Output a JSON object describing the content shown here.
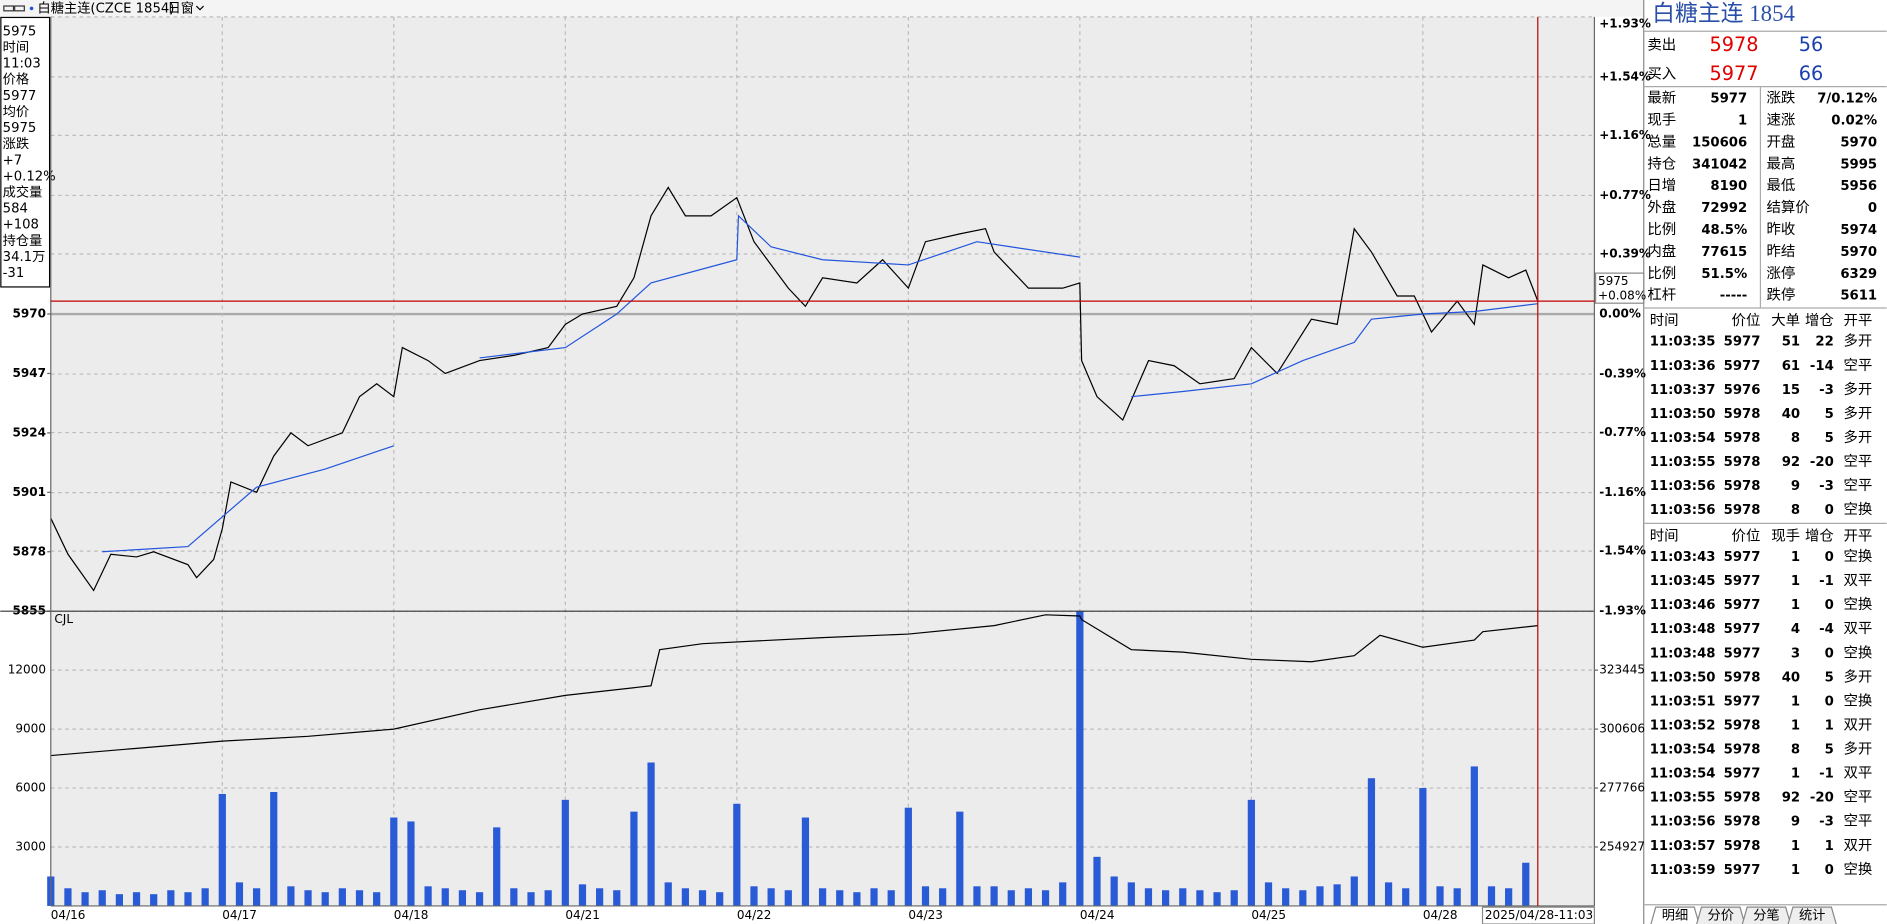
{
  "toolbar": {
    "symbol": "白糖主连(CZCE 1854)",
    "window": "日窗"
  },
  "info_box": [
    {
      "text": "5975",
      "color": "#000"
    },
    {
      "text": "时间",
      "color": "#000"
    },
    {
      "text": "11:03",
      "color": "#000"
    },
    {
      "text": "价格",
      "color": "#000"
    },
    {
      "text": "5977",
      "color": "#000"
    },
    {
      "text": "均价",
      "color": "#000"
    },
    {
      "text": "5975",
      "color": "#000"
    },
    {
      "text": "涨跌",
      "color": "#000"
    },
    {
      "text": "+7",
      "color": "#000"
    },
    {
      "text": "+0.12%",
      "color": "#000"
    },
    {
      "text": "成交量",
      "color": "#000"
    },
    {
      "text": "584",
      "color": "#000"
    },
    {
      "text": "+108",
      "color": "#e00000"
    },
    {
      "text": "持仓量",
      "color": "#000"
    },
    {
      "text": "34.1万",
      "color": "#000"
    },
    {
      "text": "-31",
      "color": "#008000"
    }
  ],
  "chart_data": [
    {
      "type": "line",
      "xlim": [
        0,
        9
      ],
      "xticks": [
        {
          "value": 0,
          "label": "04/16"
        },
        {
          "value": 1,
          "label": "04/17"
        },
        {
          "value": 2,
          "label": "04/18"
        },
        {
          "value": 3,
          "label": "04/21"
        },
        {
          "value": 4,
          "label": "04/22"
        },
        {
          "value": 5,
          "label": "04/23"
        },
        {
          "value": 6,
          "label": "04/24"
        },
        {
          "value": 7,
          "label": "04/25"
        },
        {
          "value": 8,
          "label": "04/28"
        }
      ],
      "ylim": [
        5855,
        6085
      ],
      "yticks": [
        5855,
        5878,
        5901,
        5924,
        5947,
        5970
      ],
      "y2lim": [
        -1.93,
        1.93
      ],
      "y2ticks": [
        {
          "value": 1.93,
          "label": "+1.93%"
        },
        {
          "value": 1.54,
          "label": "+1.54%"
        },
        {
          "value": 1.16,
          "label": "+1.16%"
        },
        {
          "value": 0.77,
          "label": "+0.77%"
        },
        {
          "value": 0.39,
          "label": "+0.39%"
        },
        {
          "value": 0,
          "label": "0.00%"
        },
        {
          "value": -0.39,
          "label": "-0.39%"
        },
        {
          "value": -0.77,
          "label": "-0.77%"
        },
        {
          "value": -1.16,
          "label": "-1.16%"
        },
        {
          "value": -1.54,
          "label": "-1.54%"
        },
        {
          "value": -1.93,
          "label": "-1.93%"
        }
      ],
      "grid": true,
      "series": [
        {
          "color": "#000000",
          "x": [
            0,
            0.1,
            0.25,
            0.35,
            0.5,
            0.6,
            0.8,
            0.85,
            0.95,
            1.0,
            1.05,
            1.2,
            1.3,
            1.4,
            1.5,
            1.7,
            1.8,
            1.9,
            2.0,
            2.05,
            2.2,
            2.3,
            2.5,
            2.7,
            2.9,
            3.0,
            3.1,
            3.3,
            3.4,
            3.5,
            3.6,
            3.7,
            3.85,
            4.0,
            4.1,
            4.3,
            4.4,
            4.5,
            4.7,
            4.85,
            5.0,
            5.1,
            5.3,
            5.45,
            5.5,
            5.7,
            5.9,
            6.0,
            6.01,
            6.1,
            6.25,
            6.4,
            6.55,
            6.7,
            6.9,
            7.0,
            7.15,
            7.35,
            7.5,
            7.6,
            7.7,
            7.85,
            7.95,
            8.05,
            8.2,
            8.3,
            8.35,
            8.5,
            8.6,
            8.67
          ],
          "values": [
            5891,
            5877,
            5863,
            5877,
            5876,
            5878,
            5873,
            5868,
            5875,
            5887,
            5905,
            5901,
            5915,
            5924,
            5919,
            5924,
            5938,
            5943,
            5938,
            5957,
            5952,
            5947,
            5952,
            5954,
            5957,
            5966,
            5970,
            5973,
            5984,
            6008,
            6019,
            6008,
            6008,
            6015,
            5998,
            5980,
            5973,
            5984,
            5982,
            5991,
            5980,
            5998,
            6001,
            6003,
            5994,
            5980,
            5980,
            5982,
            5952,
            5938,
            5929,
            5952,
            5950,
            5943,
            5945,
            5957,
            5947,
            5968,
            5966,
            6003,
            5994,
            5977,
            5977,
            5963,
            5975,
            5966,
            5989,
            5984,
            5987,
            5975
          ]
        },
        {
          "color": "#2255dd",
          "x": [
            0.3,
            0.8,
            1.2,
            1.6,
            2.0,
            2.01,
            2.5,
            3.0,
            3.3,
            3.5,
            4.0,
            4.01,
            4.2,
            4.5,
            5.0,
            5.4,
            5.6,
            6.0,
            6.01,
            6.3,
            6.6,
            7.0,
            7.3,
            7.6,
            7.7,
            8.0,
            8.3,
            8.67
          ],
          "values": [
            5878,
            5880,
            5903,
            5910,
            5919,
            null,
            5953,
            5957,
            5970,
            5982,
            5991,
            6008,
            5996,
            5991,
            5989,
            5998,
            5996,
            5992,
            null,
            5938,
            5940,
            5943,
            5952,
            5959,
            5968,
            5970,
            5971,
            5974
          ]
        }
      ]
    },
    {
      "type": "bar",
      "label": "CJL",
      "xlim": [
        0,
        9
      ],
      "ylim": [
        0,
        15000
      ],
      "yticks": [
        3000,
        6000,
        9000,
        12000
      ],
      "y2lim": [
        232087,
        346285
      ],
      "y2ticks": [
        254927,
        277766,
        300606,
        323445
      ],
      "series": [
        {
          "color": "#2a5bd7",
          "x": [
            0,
            0.1,
            0.2,
            0.3,
            0.4,
            0.5,
            0.6,
            0.7,
            0.8,
            0.9,
            1.0,
            1.1,
            1.2,
            1.3,
            1.4,
            1.5,
            1.6,
            1.7,
            1.8,
            1.9,
            2.0,
            2.1,
            2.2,
            2.3,
            2.4,
            2.5,
            2.6,
            2.7,
            2.8,
            2.9,
            3.0,
            3.1,
            3.2,
            3.3,
            3.4,
            3.5,
            3.6,
            3.7,
            3.8,
            3.9,
            4.0,
            4.1,
            4.2,
            4.3,
            4.4,
            4.5,
            4.6,
            4.7,
            4.8,
            4.9,
            5.0,
            5.1,
            5.2,
            5.3,
            5.4,
            5.5,
            5.6,
            5.7,
            5.8,
            5.9,
            6.0,
            6.1,
            6.2,
            6.3,
            6.4,
            6.5,
            6.6,
            6.7,
            6.8,
            6.9,
            7.0,
            7.1,
            7.2,
            7.3,
            7.4,
            7.5,
            7.6,
            7.7,
            7.8,
            7.9,
            8.0,
            8.1,
            8.2,
            8.3,
            8.4,
            8.5,
            8.6
          ],
          "values": [
            1500,
            900,
            700,
            800,
            600,
            700,
            600,
            800,
            700,
            900,
            5700,
            1200,
            900,
            5800,
            1000,
            800,
            700,
            900,
            800,
            700,
            4500,
            4300,
            1000,
            900,
            800,
            700,
            4000,
            900,
            700,
            800,
            5400,
            1100,
            900,
            800,
            4800,
            7300,
            1200,
            900,
            800,
            700,
            5200,
            1000,
            900,
            800,
            4500,
            900,
            800,
            700,
            900,
            800,
            5000,
            1000,
            900,
            4800,
            1000,
            1000,
            800,
            900,
            800,
            1200,
            15000,
            2500,
            1500,
            1200,
            900,
            800,
            900,
            800,
            700,
            800,
            5400,
            1200,
            900,
            800,
            1000,
            1100,
            1500,
            6500,
            1200,
            900,
            6000,
            1000,
            900,
            7100,
            1000,
            900,
            2200
          ]
        },
        {
          "color": "#000000",
          "axis": "y2",
          "x": [
            0,
            0.5,
            1.0,
            1.5,
            2.0,
            2.5,
            3.0,
            3.5,
            3.55,
            3.8,
            4.5,
            5.0,
            5.5,
            5.8,
            6.0,
            6.01,
            6.3,
            6.6,
            7.0,
            7.35,
            7.6,
            7.75,
            8.0,
            8.3,
            8.35,
            8.67
          ],
          "values": [
            290350,
            293150,
            295940,
            297800,
            300600,
            308060,
            313660,
            317380,
            331370,
            333700,
            336030,
            337430,
            340690,
            344880,
            344420,
            343020,
            331370,
            330440,
            327640,
            326710,
            329040,
            336960,
            332300,
            335100,
            338360,
            340690
          ]
        }
      ]
    }
  ],
  "cursor": {
    "price": 5975,
    "change": "+0.08%",
    "x": 8.67,
    "time": "2025/04/28-11:03"
  },
  "quote": {
    "title": "白糖主连 1854",
    "ask": {
      "label": "卖出",
      "price": 5978,
      "volume": 56
    },
    "bid": {
      "label": "买入",
      "price": 5977,
      "volume": 66
    },
    "left": [
      {
        "label": "最新",
        "value": 5977,
        "color": "#e00000"
      },
      {
        "label": "现手",
        "value": 1,
        "color": "#1a3fb0"
      },
      {
        "label": "总量",
        "value": 150606,
        "color": "#1a3fb0"
      },
      {
        "label": "持仓",
        "value": 341042,
        "color": "#1a3fb0"
      },
      {
        "label": "日增",
        "value": 8190,
        "color": "#1a3fb0"
      },
      {
        "label": "外盘",
        "value": 72992,
        "color": "#1a3fb0"
      },
      {
        "label": "比例",
        "value": "48.5%",
        "color": "#1a3fb0"
      },
      {
        "label": "内盘",
        "value": 77615,
        "color": "#1a3fb0"
      },
      {
        "label": "比例",
        "value": "51.5%",
        "color": "#1a3fb0"
      },
      {
        "label": "杠杆",
        "value": "-----",
        "color": "#1a3fb0"
      }
    ],
    "right": [
      {
        "label": "涨跌",
        "value": "7/0.12%",
        "color": "#e00000"
      },
      {
        "label": "速涨",
        "value": "0.02%",
        "color": "#e00000"
      },
      {
        "label": "开盘",
        "value": 5970,
        "color": "#000"
      },
      {
        "label": "最高",
        "value": 5995,
        "color": "#e00000"
      },
      {
        "label": "最低",
        "value": 5956,
        "color": "#008000"
      },
      {
        "label": "结算价",
        "value": 0,
        "color": "#000"
      },
      {
        "label": "昨收",
        "value": 5974,
        "color": "#000"
      },
      {
        "label": "昨结",
        "value": 5970,
        "color": "#000"
      },
      {
        "label": "涨停",
        "value": 6329,
        "color": "#e00000"
      },
      {
        "label": "跌停",
        "value": 5611,
        "color": "#008000"
      }
    ]
  },
  "trades_large": {
    "headers": [
      "时间",
      "价位",
      "大单",
      "增仓",
      "开平"
    ],
    "rows": [
      {
        "time": "11:03:35",
        "price": 5977,
        "vol": 51,
        "oi": 22,
        "type": "多开",
        "color": "#e00000"
      },
      {
        "time": "11:03:36",
        "price": 5977,
        "vol": 61,
        "oi": -14,
        "type": "空平",
        "color": "#e00000"
      },
      {
        "time": "11:03:37",
        "price": 5976,
        "vol": 15,
        "oi": -3,
        "type": "多开",
        "color": "#008000"
      },
      {
        "time": "11:03:50",
        "price": 5978,
        "vol": 40,
        "oi": 5,
        "type": "多开",
        "color": "#e00000"
      },
      {
        "time": "11:03:54",
        "price": 5978,
        "vol": 8,
        "oi": 5,
        "type": "多开",
        "color": "#e00000"
      },
      {
        "time": "11:03:55",
        "price": 5978,
        "vol": 92,
        "oi": -20,
        "type": "空平",
        "color": "#e00000"
      },
      {
        "time": "11:03:56",
        "price": 5978,
        "vol": 9,
        "oi": -3,
        "type": "空平",
        "color": "#e00000"
      },
      {
        "time": "11:03:56",
        "price": 5978,
        "vol": 8,
        "oi": 0,
        "type": "空换",
        "color": "#008000"
      }
    ]
  },
  "trades": {
    "headers": [
      "时间",
      "价位",
      "现手",
      "增仓",
      "开平"
    ],
    "rows": [
      {
        "time": "11:03:43",
        "price": 5977,
        "vol": 1,
        "oi": 0,
        "type": "空换",
        "color": "#008000"
      },
      {
        "time": "11:03:45",
        "price": 5977,
        "vol": 1,
        "oi": -1,
        "type": "双平",
        "color": "#008000"
      },
      {
        "time": "11:03:46",
        "price": 5977,
        "vol": 1,
        "oi": 0,
        "type": "空换",
        "color": "#008000"
      },
      {
        "time": "11:03:48",
        "price": 5977,
        "vol": 4,
        "oi": -4,
        "type": "双平",
        "color": "#008000"
      },
      {
        "time": "11:03:48",
        "price": 5977,
        "vol": 3,
        "oi": 0,
        "type": "空换",
        "color": "#008000"
      },
      {
        "time": "11:03:50",
        "price": 5978,
        "vol": 40,
        "oi": 5,
        "type": "多开",
        "color": "#e00000"
      },
      {
        "time": "11:03:51",
        "price": 5977,
        "vol": 1,
        "oi": 0,
        "type": "空换",
        "color": "#008000"
      },
      {
        "time": "11:03:52",
        "price": 5978,
        "vol": 1,
        "oi": 1,
        "type": "双开",
        "color": "#e00000"
      },
      {
        "time": "11:03:54",
        "price": 5978,
        "vol": 8,
        "oi": 5,
        "type": "多开",
        "color": "#e00000"
      },
      {
        "time": "11:03:54",
        "price": 5977,
        "vol": 1,
        "oi": -1,
        "type": "双平",
        "color": "#008000"
      },
      {
        "time": "11:03:55",
        "price": 5978,
        "vol": 92,
        "oi": -20,
        "type": "空平",
        "color": "#e00000"
      },
      {
        "time": "11:03:56",
        "price": 5978,
        "vol": 9,
        "oi": -3,
        "type": "空平",
        "color": "#e00000"
      },
      {
        "time": "11:03:57",
        "price": 5978,
        "vol": 1,
        "oi": 1,
        "type": "双开",
        "color": "#e00000"
      },
      {
        "time": "11:03:59",
        "price": 5977,
        "vol": 1,
        "oi": 0,
        "type": "空换",
        "color": "#008000"
      }
    ]
  },
  "tabs": [
    "明细",
    "分价",
    "分笔",
    "统计"
  ]
}
